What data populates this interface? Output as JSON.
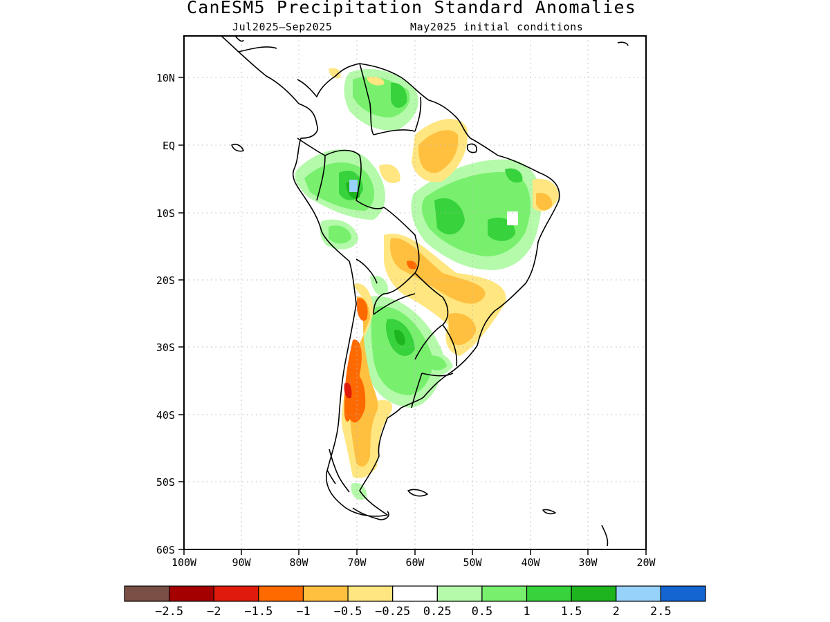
{
  "title": "CanESM5 Precipitation Standard Anomalies",
  "subtitle_left": "Jul2025–Sep2025",
  "subtitle_right": "May2025 initial conditions",
  "y_ticks": [
    "10N",
    "EQ",
    "10S",
    "20S",
    "30S",
    "40S",
    "50S",
    "60S"
  ],
  "x_ticks": [
    "100W",
    "90W",
    "80W",
    "70W",
    "60W",
    "50W",
    "40W",
    "30W",
    "20W"
  ],
  "legend": {
    "colors": [
      "#7a5046",
      "#a50000",
      "#e01b0c",
      "#ff6a00",
      "#ffc040",
      "#ffe680",
      "#ffffff",
      "#b4faaa",
      "#78f06e",
      "#37d23c",
      "#1eb41e",
      "#96d2fa",
      "#1464d2"
    ],
    "labels": [
      "−2.5",
      "−2",
      "−1.5",
      "−1",
      "−0.5",
      "−0.25",
      "0.25",
      "0.5",
      "1",
      "1.5",
      "2",
      "2.5"
    ]
  },
  "map": {
    "region": "South America",
    "lon_range": [
      -100,
      -20
    ],
    "lat_range": [
      -60,
      15
    ],
    "variable": "precipitation standard anomaly",
    "colors": {
      "coast": "#000000",
      "grid": "#b4b4b4"
    }
  }
}
